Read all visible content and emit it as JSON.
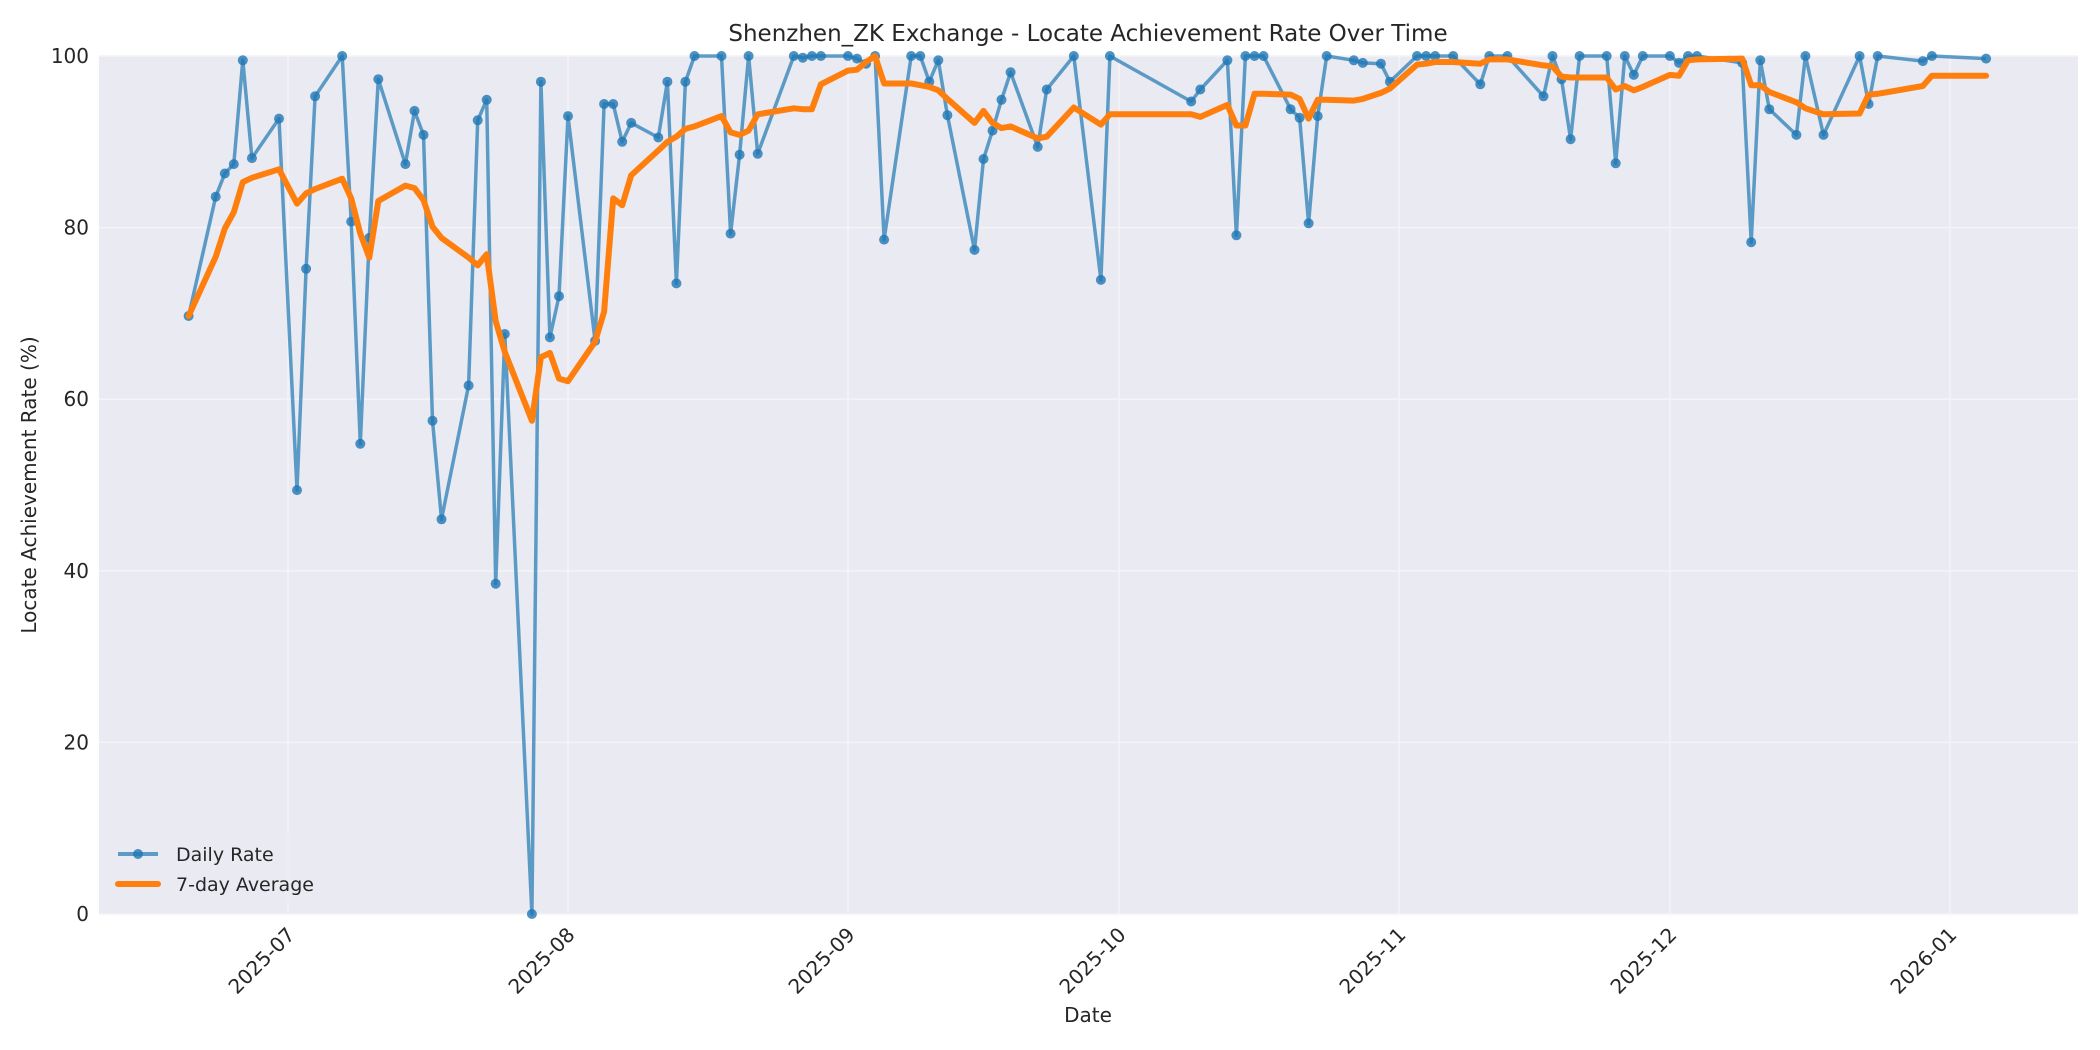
{
  "chart_data": {
    "type": "line",
    "title": "Shenzhen_ZK Exchange - Locate Achievement Rate Over Time",
    "xlabel": "Date",
    "ylabel": "Locate Achievement Rate (%)",
    "ylim": [
      0,
      100
    ],
    "xlim": [
      "2025-06-10",
      "2026-01-15"
    ],
    "grid": true,
    "legend_position": "lower left",
    "yticks": [
      0,
      20,
      40,
      60,
      80,
      100
    ],
    "xticks": [
      "2025-07",
      "2025-08",
      "2025-09",
      "2025-10",
      "2025-11",
      "2025-12",
      "2026-01"
    ],
    "xtick_dates": [
      "2025-07-01",
      "2025-08-01",
      "2025-09-01",
      "2025-10-01",
      "2025-11-01",
      "2025-12-01",
      "2026-01-01"
    ],
    "series": [
      {
        "name": "Daily Rate",
        "color": "#1f77b4",
        "style": "line-with-markers",
        "x": [
          "2025-06-20",
          "2025-06-23",
          "2025-06-24",
          "2025-06-25",
          "2025-06-26",
          "2025-06-27",
          "2025-06-30",
          "2025-07-02",
          "2025-07-03",
          "2025-07-04",
          "2025-07-07",
          "2025-07-08",
          "2025-07-09",
          "2025-07-10",
          "2025-07-11",
          "2025-07-14",
          "2025-07-15",
          "2025-07-16",
          "2025-07-17",
          "2025-07-18",
          "2025-07-21",
          "2025-07-22",
          "2025-07-23",
          "2025-07-24",
          "2025-07-25",
          "2025-07-28",
          "2025-07-29",
          "2025-07-30",
          "2025-07-31",
          "2025-08-01",
          "2025-08-04",
          "2025-08-05",
          "2025-08-06",
          "2025-08-07",
          "2025-08-08",
          "2025-08-11",
          "2025-08-12",
          "2025-08-13",
          "2025-08-14",
          "2025-08-15",
          "2025-08-18",
          "2025-08-19",
          "2025-08-20",
          "2025-08-21",
          "2025-08-22",
          "2025-08-26",
          "2025-08-27",
          "2025-08-28",
          "2025-08-29",
          "2025-09-01",
          "2025-09-02",
          "2025-09-03",
          "2025-09-04",
          "2025-09-05",
          "2025-09-08",
          "2025-09-09",
          "2025-09-10",
          "2025-09-11",
          "2025-09-12",
          "2025-09-15",
          "2025-09-16",
          "2025-09-17",
          "2025-09-18",
          "2025-09-19",
          "2025-09-22",
          "2025-09-23",
          "2025-09-26",
          "2025-09-29",
          "2025-09-30",
          "2025-10-09",
          "2025-10-10",
          "2025-10-13",
          "2025-10-14",
          "2025-10-15",
          "2025-10-16",
          "2025-10-17",
          "2025-10-20",
          "2025-10-21",
          "2025-10-22",
          "2025-10-23",
          "2025-10-24",
          "2025-10-27",
          "2025-10-28",
          "2025-10-30",
          "2025-10-31",
          "2025-11-03",
          "2025-11-04",
          "2025-11-05",
          "2025-11-07",
          "2025-11-10",
          "2025-11-11",
          "2025-11-13",
          "2025-11-17",
          "2025-11-18",
          "2025-11-19",
          "2025-11-20",
          "2025-11-21",
          "2025-11-24",
          "2025-11-25",
          "2025-11-26",
          "2025-11-27",
          "2025-11-28",
          "2025-12-01",
          "2025-12-02",
          "2025-12-03",
          "2025-12-04",
          "2025-12-09",
          "2025-12-10",
          "2025-12-11",
          "2025-12-12",
          "2025-12-15",
          "2025-12-16",
          "2025-12-18",
          "2025-12-22",
          "2025-12-23",
          "2025-12-24",
          "2025-12-29",
          "2025-12-30",
          "2026-01-05"
        ],
        "values": [
          69.7,
          83.6,
          86.3,
          87.4,
          99.5,
          88.1,
          92.7,
          49.4,
          75.2,
          95.3,
          100,
          80.7,
          54.8,
          78.8,
          97.3,
          87.4,
          93.6,
          90.8,
          57.5,
          46.0,
          61.6,
          92.5,
          94.9,
          38.5,
          67.6,
          0.0,
          97.0,
          67.2,
          72.0,
          93.0,
          66.8,
          94.4,
          94.4,
          90.0,
          92.2,
          90.5,
          97.0,
          73.5,
          97.0,
          100,
          100,
          79.3,
          88.5,
          100,
          88.6,
          100,
          99.8,
          100,
          100,
          100,
          99.7,
          99.1,
          100,
          78.6,
          100,
          100,
          97.0,
          99.5,
          93.1,
          77.4,
          88.0,
          91.3,
          94.9,
          98.1,
          89.4,
          96.1,
          100,
          73.9,
          100,
          94.7,
          96.1,
          99.5,
          79.1,
          100,
          100,
          100,
          93.8,
          92.8,
          80.5,
          93.0,
          100,
          99.5,
          99.2,
          99.1,
          97.0,
          100,
          100,
          100,
          100,
          96.7,
          100,
          100,
          95.3,
          100,
          97.3,
          90.3,
          100,
          100,
          87.5,
          100,
          97.8,
          100,
          100,
          99.2,
          100,
          100,
          99.2,
          78.3,
          99.5,
          93.8,
          90.8,
          100,
          90.8,
          100,
          94.4,
          100,
          99.4,
          100,
          99.7
        ]
      },
      {
        "name": "7-day Average",
        "color": "#ff7f0e",
        "style": "line",
        "x": [
          "2025-06-20",
          "2025-06-23",
          "2025-06-24",
          "2025-06-25",
          "2025-06-26",
          "2025-06-27",
          "2025-06-30",
          "2025-07-02",
          "2025-07-03",
          "2025-07-04",
          "2025-07-07",
          "2025-07-08",
          "2025-07-09",
          "2025-07-10",
          "2025-07-11",
          "2025-07-14",
          "2025-07-15",
          "2025-07-16",
          "2025-07-17",
          "2025-07-18",
          "2025-07-21",
          "2025-07-22",
          "2025-07-23",
          "2025-07-24",
          "2025-07-25",
          "2025-07-28",
          "2025-07-29",
          "2025-07-30",
          "2025-07-31",
          "2025-08-01",
          "2025-08-04",
          "2025-08-05",
          "2025-08-06",
          "2025-08-07",
          "2025-08-08",
          "2025-08-11",
          "2025-08-12",
          "2025-08-13",
          "2025-08-14",
          "2025-08-15",
          "2025-08-18",
          "2025-08-19",
          "2025-08-20",
          "2025-08-21",
          "2025-08-22",
          "2025-08-26",
          "2025-08-27",
          "2025-08-28",
          "2025-08-29",
          "2025-09-01",
          "2025-09-02",
          "2025-09-03",
          "2025-09-04",
          "2025-09-05",
          "2025-09-08",
          "2025-09-09",
          "2025-09-10",
          "2025-09-11",
          "2025-09-12",
          "2025-09-15",
          "2025-09-16",
          "2025-09-17",
          "2025-09-18",
          "2025-09-19",
          "2025-09-22",
          "2025-09-23",
          "2025-09-26",
          "2025-09-29",
          "2025-09-30",
          "2025-10-09",
          "2025-10-10",
          "2025-10-13",
          "2025-10-14",
          "2025-10-15",
          "2025-10-16",
          "2025-10-17",
          "2025-10-20",
          "2025-10-21",
          "2025-10-22",
          "2025-10-23",
          "2025-10-24",
          "2025-10-27",
          "2025-10-28",
          "2025-10-30",
          "2025-10-31",
          "2025-11-03",
          "2025-11-04",
          "2025-11-05",
          "2025-11-07",
          "2025-11-10",
          "2025-11-11",
          "2025-11-13",
          "2025-11-17",
          "2025-11-18",
          "2025-11-19",
          "2025-11-20",
          "2025-11-21",
          "2025-11-24",
          "2025-11-25",
          "2025-11-26",
          "2025-11-27",
          "2025-11-28",
          "2025-12-01",
          "2025-12-02",
          "2025-12-03",
          "2025-12-04",
          "2025-12-09",
          "2025-12-10",
          "2025-12-11",
          "2025-12-12",
          "2025-12-15",
          "2025-12-16",
          "2025-12-18",
          "2025-12-22",
          "2025-12-23",
          "2025-12-24",
          "2025-12-29",
          "2025-12-30",
          "2026-01-05"
        ],
        "values": [
          69.7,
          76.6,
          79.9,
          81.8,
          85.3,
          85.8,
          86.8,
          82.8,
          84.0,
          84.5,
          85.7,
          83.4,
          79.3,
          76.5,
          83.1,
          84.9,
          84.6,
          83.2,
          80.1,
          78.8,
          76.5,
          75.6,
          76.9,
          69.1,
          65.5,
          57.5,
          64.9,
          65.4,
          62.4,
          62.1,
          66.7,
          70.2,
          83.4,
          82.6,
          86.1,
          89.0,
          90.0,
          90.6,
          91.5,
          91.8,
          93.0,
          91.1,
          90.8,
          91.3,
          93.2,
          93.9,
          93.8,
          93.8,
          96.7,
          98.3,
          98.4,
          99.3,
          100,
          96.8,
          96.8,
          96.6,
          96.4,
          96.0,
          95.0,
          92.2,
          93.6,
          92.2,
          91.6,
          91.8,
          90.4,
          90.6,
          94.0,
          92.0,
          93.2,
          93.2,
          92.9,
          94.3,
          91.9,
          91.9,
          95.6,
          95.6,
          95.5,
          95.0,
          92.7,
          94.9,
          94.9,
          94.8,
          95.0,
          95.7,
          96.2,
          99.0,
          99.1,
          99.3,
          99.3,
          99.1,
          99.6,
          99.6,
          98.9,
          98.8,
          97.6,
          97.5,
          97.5,
          97.5,
          96.1,
          96.5,
          96.0,
          96.4,
          97.8,
          97.7,
          99.5,
          99.6,
          99.7,
          96.6,
          96.6,
          95.8,
          94.6,
          93.9,
          93.2,
          93.3,
          95.5,
          95.6,
          96.5,
          97.7,
          97.7
        ]
      }
    ]
  },
  "legend": {
    "items": [
      {
        "label": "Daily Rate",
        "color": "#1f77b4"
      },
      {
        "label": "7-day Average",
        "color": "#ff7f0e"
      }
    ]
  },
  "colors": {
    "plot_background": "#eaeaf2",
    "grid": "#f4f4f8",
    "daily": "#1f77b4",
    "average": "#ff7f0e"
  }
}
